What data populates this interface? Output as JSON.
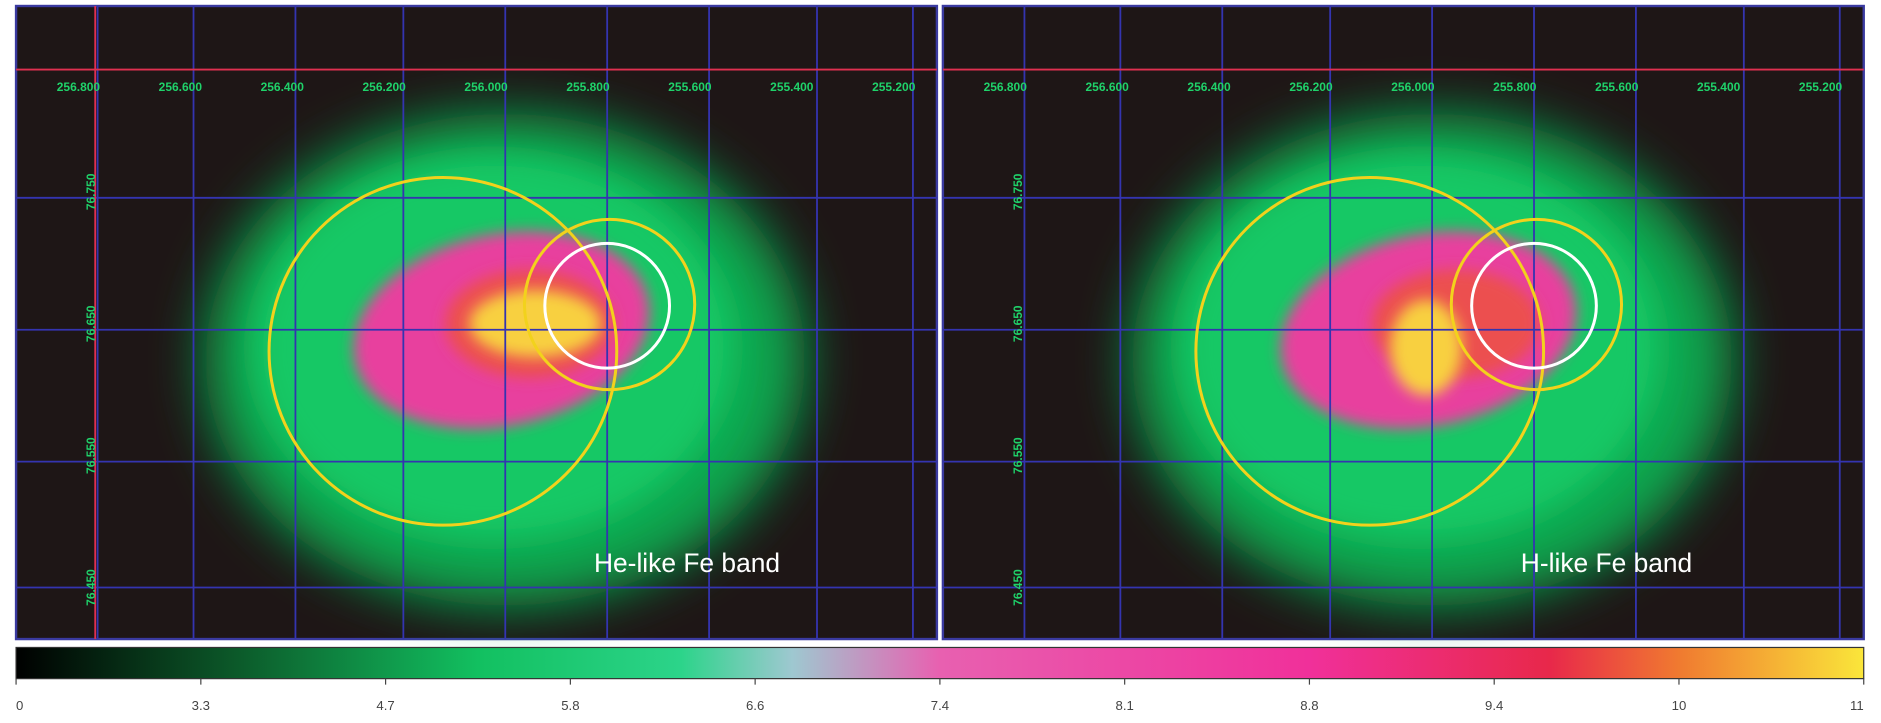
{
  "panels": [
    {
      "label": "He-like Fe band",
      "ra_labels": [
        "256.800",
        "256.600",
        "256.400",
        "256.200",
        "256.000",
        "255.800",
        "255.600",
        "255.400",
        "255.200"
      ],
      "dec_labels": [
        "76.750",
        "76.650",
        "76.550",
        "76.450"
      ]
    },
    {
      "label": "H-like Fe band",
      "ra_labels": [
        "256.800",
        "256.600",
        "256.400",
        "256.200",
        "256.000",
        "255.800",
        "255.600",
        "255.400",
        "255.200"
      ],
      "dec_labels": [
        "76.750",
        "76.650",
        "76.550",
        "76.450"
      ]
    }
  ],
  "colorbar": {
    "ticks": [
      0,
      3.3,
      4.7,
      5.8,
      6.6,
      7.4,
      8.1,
      8.8,
      9.4,
      10,
      11
    ]
  }
}
